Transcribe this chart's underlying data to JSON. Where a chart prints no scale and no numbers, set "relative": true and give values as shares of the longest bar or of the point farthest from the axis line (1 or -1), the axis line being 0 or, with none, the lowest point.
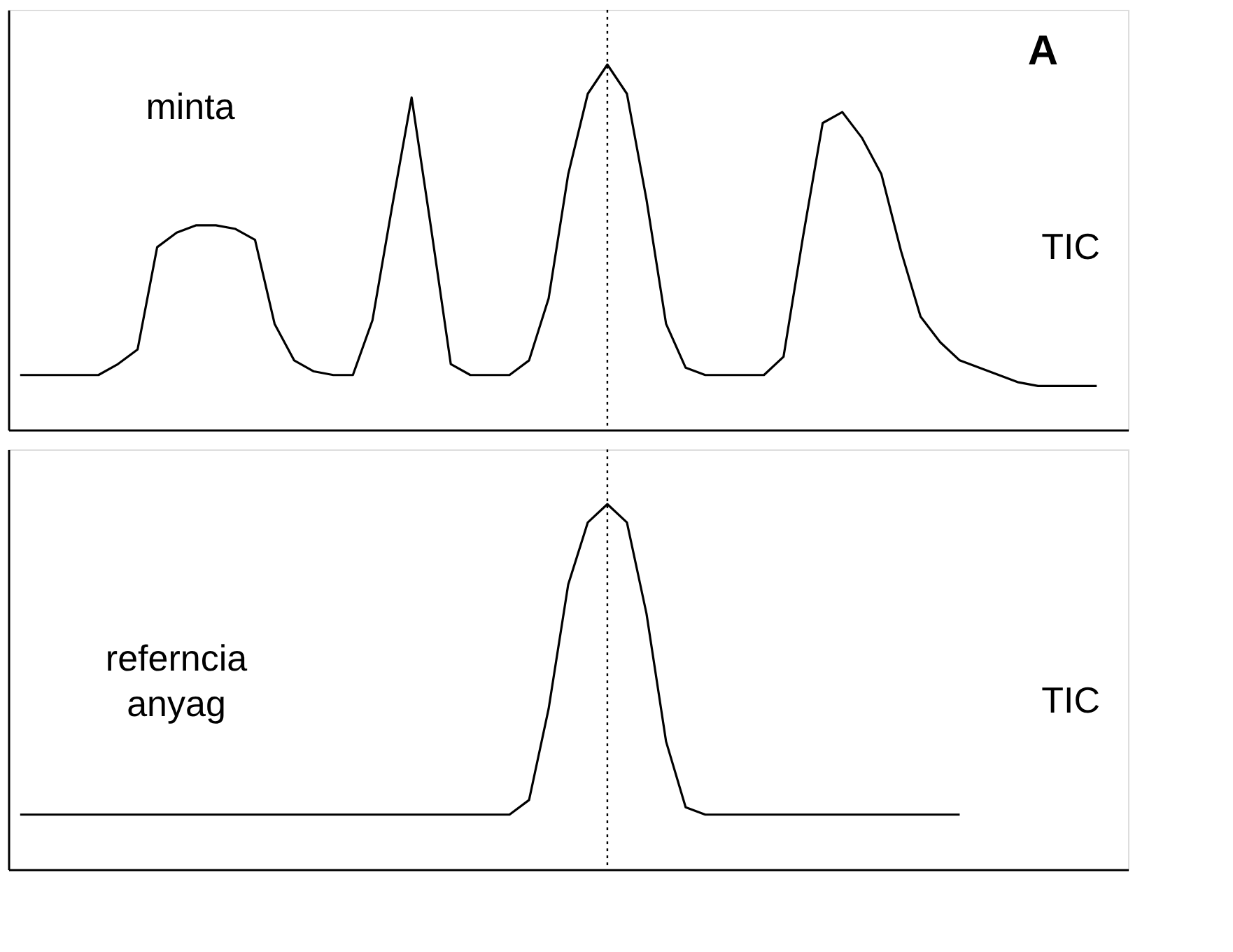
{
  "chart_data": [
    {
      "type": "line",
      "relative": true,
      "categories": [
        null,
        null,
        null,
        null,
        null,
        null,
        null,
        null,
        null,
        null,
        null,
        null,
        null,
        null,
        null,
        null,
        null,
        null,
        null,
        null,
        null,
        null,
        null,
        null,
        null,
        null,
        null,
        null,
        null,
        null,
        null,
        null,
        null,
        null,
        null,
        null,
        null,
        null,
        null,
        null,
        null,
        null,
        null,
        null,
        null,
        null,
        null,
        null,
        null,
        null,
        null,
        null,
        null,
        null,
        null,
        null,
        null
      ],
      "series": [
        {
          "color": "#000000",
          "values": [
            0.15,
            0.15,
            0.15,
            0.15,
            0.15,
            0.18,
            0.22,
            0.5,
            0.54,
            0.56,
            0.56,
            0.55,
            0.52,
            0.29,
            0.19,
            0.16,
            0.15,
            0.15,
            0.3,
            0.61,
            0.91,
            0.55,
            0.18,
            0.15,
            0.15,
            0.15,
            0.19,
            0.36,
            0.7,
            0.92,
            1,
            0.92,
            0.63,
            0.29,
            0.17,
            0.15,
            0.15,
            0.15,
            0.15,
            0.2,
            0.53,
            0.84,
            0.87,
            0.8,
            0.7,
            0.49,
            0.31,
            0.24,
            0.19,
            0.17,
            0.15,
            0.13,
            0.12,
            0.12,
            0.12,
            0.12,
            null
          ]
        }
      ],
      "annotations": [
        "A",
        "minta",
        "TIC"
      ]
    },
    {
      "type": "line",
      "relative": true,
      "categories": [
        null,
        null,
        null,
        null,
        null,
        null,
        null,
        null,
        null,
        null,
        null,
        null,
        null,
        null,
        null,
        null,
        null,
        null,
        null,
        null,
        null,
        null,
        null,
        null,
        null,
        null,
        null,
        null,
        null,
        null,
        null,
        null,
        null,
        null,
        null,
        null,
        null,
        null,
        null,
        null,
        null,
        null,
        null,
        null,
        null,
        null,
        null,
        null,
        null,
        null,
        null,
        null,
        null,
        null,
        null,
        null,
        null
      ],
      "series": [
        {
          "color": "#000000",
          "values": [
            0.15,
            0.15,
            0.15,
            0.15,
            0.15,
            0.15,
            0.15,
            0.15,
            0.15,
            0.15,
            0.15,
            0.15,
            0.15,
            0.15,
            0.15,
            0.15,
            0.15,
            0.15,
            0.15,
            0.15,
            0.15,
            0.15,
            0.15,
            0.15,
            0.15,
            0.15,
            0.19,
            0.44,
            0.78,
            0.95,
            1,
            0.95,
            0.7,
            0.35,
            0.17,
            0.15,
            0.15,
            0.15,
            0.15,
            0.15,
            0.15,
            0.15,
            0.15,
            0.15,
            0.15,
            0.15,
            0.15,
            0.15,
            0.15,
            null,
            null,
            null,
            null,
            null,
            null,
            null,
            null
          ]
        }
      ],
      "annotations": [
        "referncia\nanyag",
        "TIC"
      ]
    }
  ]
}
